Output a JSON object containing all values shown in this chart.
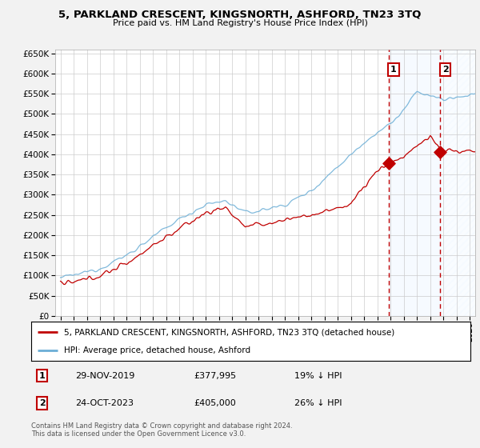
{
  "title": "5, PARKLAND CRESCENT, KINGSNORTH, ASHFORD, TN23 3TQ",
  "subtitle": "Price paid vs. HM Land Registry's House Price Index (HPI)",
  "ylim": [
    0,
    660000
  ],
  "yticks": [
    0,
    50000,
    100000,
    150000,
    200000,
    250000,
    300000,
    350000,
    400000,
    450000,
    500000,
    550000,
    600000,
    650000
  ],
  "ytick_labels": [
    "£0",
    "£50K",
    "£100K",
    "£150K",
    "£200K",
    "£250K",
    "£300K",
    "£350K",
    "£400K",
    "£450K",
    "£500K",
    "£550K",
    "£600K",
    "£650K"
  ],
  "legend_entry1": "5, PARKLAND CRESCENT, KINGSNORTH, ASHFORD, TN23 3TQ (detached house)",
  "legend_entry2": "HPI: Average price, detached house, Ashford",
  "purchase1_date": "29-NOV-2019",
  "purchase1_price": 377995,
  "purchase1_label": "£377,995",
  "purchase1_hpi": "19% ↓ HPI",
  "purchase2_date": "24-OCT-2023",
  "purchase2_price": 405000,
  "purchase2_label": "£405,000",
  "purchase2_hpi": "26% ↓ HPI",
  "footer1": "Contains HM Land Registry data © Crown copyright and database right 2024.",
  "footer2": "This data is licensed under the Open Government Licence v3.0.",
  "line_color_hpi": "#6baed6",
  "line_color_price": "#c00000",
  "vline_color": "#c00000",
  "shade_color": "#ddeeff",
  "background_color": "#f2f2f2",
  "plot_bg_color": "#ffffff",
  "grid_color": "#cccccc",
  "box_edge_color": "#c00000"
}
